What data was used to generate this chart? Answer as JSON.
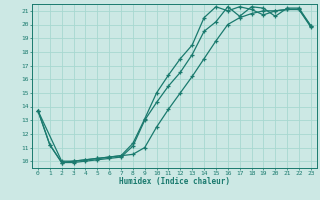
{
  "xlabel": "Humidex (Indice chaleur)",
  "background_color": "#cce8e4",
  "line_color": "#1a7a6e",
  "grid_color": "#a8d8d0",
  "xlim": [
    -0.5,
    23.5
  ],
  "ylim": [
    9.5,
    21.5
  ],
  "xticks": [
    0,
    1,
    2,
    3,
    4,
    5,
    6,
    7,
    8,
    9,
    10,
    11,
    12,
    13,
    14,
    15,
    16,
    17,
    18,
    19,
    20,
    21,
    22,
    23
  ],
  "yticks": [
    10,
    11,
    12,
    13,
    14,
    15,
    16,
    17,
    18,
    19,
    20,
    21
  ],
  "line1_x": [
    0,
    1,
    2,
    3,
    4,
    5,
    6,
    7,
    8,
    9,
    10,
    11,
    12,
    13,
    14,
    15,
    16,
    17,
    18,
    19,
    20,
    21,
    22,
    23
  ],
  "line1_y": [
    13.7,
    11.2,
    9.9,
    10.0,
    10.1,
    10.2,
    10.3,
    10.4,
    11.3,
    13.1,
    15.0,
    16.3,
    17.5,
    18.5,
    20.5,
    21.3,
    21.0,
    21.3,
    21.1,
    20.7,
    21.0,
    21.1,
    21.1,
    19.8
  ],
  "line2_x": [
    0,
    1,
    2,
    3,
    4,
    5,
    6,
    7,
    8,
    9,
    10,
    11,
    12,
    13,
    14,
    15,
    16,
    17,
    18,
    19,
    20,
    21,
    22,
    23
  ],
  "line2_y": [
    13.7,
    11.2,
    9.9,
    9.9,
    10.0,
    10.1,
    10.2,
    10.3,
    11.1,
    13.0,
    14.3,
    15.5,
    16.5,
    17.8,
    19.5,
    20.2,
    21.3,
    20.6,
    21.3,
    21.2,
    20.6,
    21.2,
    21.2,
    19.9
  ],
  "line3_x": [
    0,
    2,
    3,
    4,
    5,
    6,
    7,
    8,
    9,
    10,
    11,
    12,
    13,
    14,
    15,
    16,
    17,
    18,
    19,
    20,
    21,
    22,
    23
  ],
  "line3_y": [
    13.7,
    10.0,
    10.0,
    10.1,
    10.2,
    10.3,
    10.4,
    10.5,
    11.0,
    12.5,
    13.8,
    15.0,
    16.2,
    17.5,
    18.8,
    20.0,
    20.5,
    20.8,
    21.0,
    21.0,
    21.1,
    21.1,
    19.9
  ]
}
